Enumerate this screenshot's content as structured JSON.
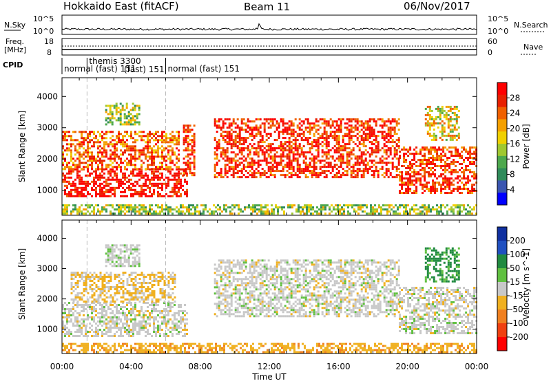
{
  "header": {
    "title": "Hokkaido East (fitACF)",
    "beam": "Beam 11",
    "date": "06/Nov/2017"
  },
  "strips": {
    "nsky_label": "N.Sky",
    "nsky_top_tick": "10^5",
    "nsky_bottom_tick": "10^0",
    "nsearch_label": "N.Search",
    "freq_label_line1": "Freq.",
    "freq_label_line2": "[MHz]",
    "freq_ticks": [
      "18",
      "8"
    ],
    "nave_label": "Nave",
    "nave_ticks": [
      "60",
      "0"
    ],
    "cpid_label": "CPID",
    "cpid_segments": [
      {
        "label": "normal (fast) 151",
        "start_hour": 0.0,
        "end_hour": 1.45
      },
      {
        "label": "themis 3300",
        "start_hour": 1.45,
        "end_hour": 6.0
      },
      {
        "label": "normal (fast) 151",
        "start_hour": 6.0,
        "end_hour": 24.0
      }
    ],
    "cpid_overlay_label": "(fast) 151"
  },
  "chart_data": [
    {
      "type": "heatmap",
      "parameter": "Power",
      "ylabel": "Slant Range [km]",
      "y_ticks": [
        1000,
        2000,
        3000,
        4000
      ],
      "ylim": [
        200,
        4600
      ],
      "xlim_hours": [
        0,
        24
      ],
      "colorbar": {
        "label": "Power [dB]",
        "ticks": [
          4,
          8,
          12,
          16,
          20,
          24,
          28
        ],
        "range": [
          0,
          32
        ],
        "colors": [
          "#0000ff",
          "#3a55b0",
          "#2f8b5a",
          "#4da84d",
          "#a0c830",
          "#f0d000",
          "#f5a000",
          "#f06000",
          "#e82000",
          "#ff0000"
        ]
      },
      "echo_regions": [
        {
          "start_hour": 0.0,
          "end_hour": 7.2,
          "min_km": 800,
          "max_km": 1700,
          "power_db": 30
        },
        {
          "start_hour": 0.0,
          "end_hour": 6.8,
          "min_km": 1700,
          "max_km": 2900,
          "power_db": 24
        },
        {
          "start_hour": 2.5,
          "end_hour": 4.5,
          "min_km": 3100,
          "max_km": 3800,
          "power_db": 14
        },
        {
          "start_hour": 7.0,
          "end_hour": 7.6,
          "min_km": 1500,
          "max_km": 3100,
          "power_db": 26
        },
        {
          "start_hour": 8.8,
          "end_hour": 19.5,
          "min_km": 1400,
          "max_km": 3300,
          "power_db": 28
        },
        {
          "start_hour": 19.5,
          "end_hour": 24.0,
          "min_km": 900,
          "max_km": 2400,
          "power_db": 27
        },
        {
          "start_hour": 21.0,
          "end_hour": 23.0,
          "min_km": 2600,
          "max_km": 3700,
          "power_db": 18
        },
        {
          "start_hour": 0.0,
          "end_hour": 24.0,
          "min_km": 250,
          "max_km": 550,
          "power_db": 14
        }
      ]
    },
    {
      "type": "heatmap",
      "parameter": "Velocity",
      "ylabel": "Slant Range [km]",
      "y_ticks": [
        1000,
        2000,
        3000,
        4000
      ],
      "ylim": [
        200,
        4600
      ],
      "xlim_hours": [
        0,
        24
      ],
      "colorbar": {
        "label": "Velocity [m s^-1]",
        "ticks": [
          200,
          100,
          50,
          15,
          -15,
          -50,
          -100,
          -200
        ],
        "colors": [
          "#1030a0",
          "#2050c0",
          "#208a40",
          "#60c040",
          "#c8c8c8",
          "#f0b020",
          "#f08020",
          "#f04010",
          "#ff0000"
        ]
      },
      "echo_regions": [
        {
          "start_hour": 0.0,
          "end_hour": 7.2,
          "min_km": 800,
          "max_km": 1900,
          "velocity": 0
        },
        {
          "start_hour": 0.5,
          "end_hour": 6.5,
          "min_km": 1900,
          "max_km": 2900,
          "velocity": -20
        },
        {
          "start_hour": 2.5,
          "end_hour": 4.5,
          "min_km": 3100,
          "max_km": 3800,
          "velocity": 5
        },
        {
          "start_hour": 8.8,
          "end_hour": 19.5,
          "min_km": 1400,
          "max_km": 3300,
          "velocity": 0
        },
        {
          "start_hour": 19.5,
          "end_hour": 24.0,
          "min_km": 900,
          "max_km": 2400,
          "velocity": 0
        },
        {
          "start_hour": 21.0,
          "end_hour": 23.0,
          "min_km": 2600,
          "max_km": 3700,
          "velocity": 60
        },
        {
          "start_hour": 0.0,
          "end_hour": 24.0,
          "min_km": 250,
          "max_km": 550,
          "velocity": -40
        }
      ]
    }
  ],
  "xaxis": {
    "label": "Time UT",
    "ticks": [
      "00:00",
      "04:00",
      "08:00",
      "12:00",
      "16:00",
      "20:00",
      "00:00"
    ]
  }
}
